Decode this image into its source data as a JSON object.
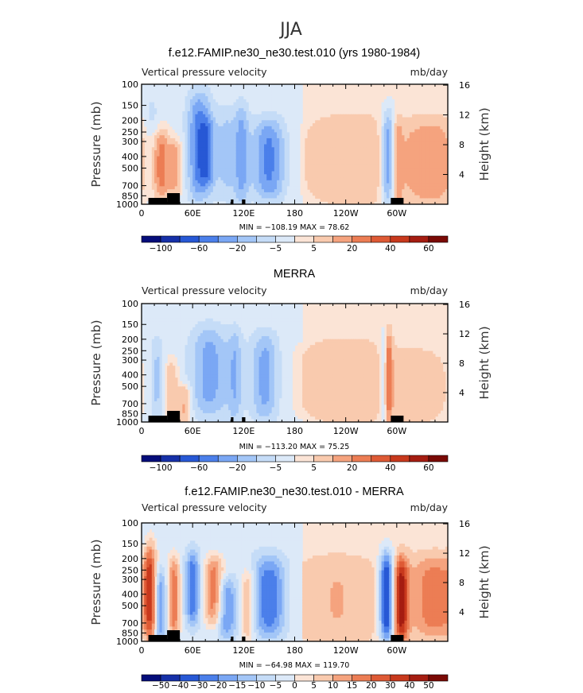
{
  "figure_title": "JJA",
  "chart_data": [
    {
      "type": "heatmap",
      "title": "f.e12.FAMIP.ne30_ne30.test.010 (yrs 1980-1984)",
      "variable_label": "Vertical pressure velocity",
      "units_label": "mb/day",
      "ylabel": "Pressure (mb)",
      "ylabel_right": "Height (km)",
      "xlabel": "",
      "x_ticks": [
        "0",
        "60E",
        "120E",
        "180",
        "120W",
        "60W"
      ],
      "y_ticks": [
        "100",
        "150",
        "200",
        "250",
        "300",
        "400",
        "500",
        "700",
        "850",
        "1000"
      ],
      "y_right_ticks": [
        "16",
        "12",
        "8",
        "4"
      ],
      "stats": "MIN = −108.19   MAX =  78.62",
      "colorbar_labels": [
        "−100",
        "−60",
        "−20",
        "−5",
        "5",
        "20",
        "40",
        "60"
      ],
      "colorbar_levels": [
        "−100",
        "−80",
        "−60",
        "−40",
        "−20",
        "−10",
        "−5",
        "−2",
        "2",
        "5",
        "10",
        "20",
        "30",
        "40",
        "60",
        "80"
      ],
      "xlim": [
        0,
        360
      ],
      "ylim": [
        1000,
        100
      ],
      "features": [
        {
          "lon": 12,
          "p_top": 140,
          "p_bot": 1000,
          "w": 6,
          "v": -18
        },
        {
          "lon": 22,
          "p_top": 250,
          "p_bot": 900,
          "w": 8,
          "v": 40
        },
        {
          "lon": 40,
          "p_top": 300,
          "p_bot": 800,
          "w": 6,
          "v": 30
        },
        {
          "lon": 68,
          "p_top": 120,
          "p_bot": 900,
          "w": 10,
          "v": -48
        },
        {
          "lon": 78,
          "p_top": 200,
          "p_bot": 700,
          "w": 6,
          "v": -25
        },
        {
          "lon": 100,
          "p_top": 160,
          "p_bot": 900,
          "w": 10,
          "v": -22
        },
        {
          "lon": 118,
          "p_top": 150,
          "p_bot": 1000,
          "w": 6,
          "v": -30
        },
        {
          "lon": 150,
          "p_top": 200,
          "p_bot": 900,
          "w": 14,
          "v": -45
        },
        {
          "lon": 245,
          "p_top": 180,
          "p_bot": 1000,
          "w": 40,
          "v": 18
        },
        {
          "lon": 290,
          "p_top": 170,
          "p_bot": 1000,
          "w": 6,
          "v": -55
        },
        {
          "lon": 300,
          "p_top": 200,
          "p_bot": 1000,
          "w": 4,
          "v": 25
        },
        {
          "lon": 340,
          "p_top": 200,
          "p_bot": 1000,
          "w": 25,
          "v": 28
        }
      ]
    },
    {
      "type": "heatmap",
      "title": "MERRA",
      "variable_label": "Vertical pressure velocity",
      "units_label": "mb/day",
      "ylabel": "Pressure (mb)",
      "ylabel_right": "Height (km)",
      "xlabel": "",
      "x_ticks": [
        "0",
        "60E",
        "120E",
        "180",
        "120W",
        "60W"
      ],
      "y_ticks": [
        "100",
        "150",
        "200",
        "250",
        "300",
        "400",
        "500",
        "700",
        "850",
        "1000"
      ],
      "y_right_ticks": [
        "16",
        "12",
        "8",
        "4"
      ],
      "stats": "MIN = −113.20   MAX =  75.25",
      "colorbar_labels": [
        "−100",
        "−60",
        "−20",
        "−5",
        "5",
        "20",
        "40",
        "60"
      ],
      "colorbar_levels": [
        "−100",
        "−80",
        "−60",
        "−40",
        "−20",
        "−10",
        "−5",
        "−2",
        "2",
        "5",
        "10",
        "20",
        "30",
        "40",
        "60",
        "80"
      ],
      "xlim": [
        0,
        360
      ],
      "ylim": [
        1000,
        100
      ],
      "features": [
        {
          "lon": 18,
          "p_top": 200,
          "p_bot": 1000,
          "w": 6,
          "v": -22
        },
        {
          "lon": 35,
          "p_top": 300,
          "p_bot": 900,
          "w": 6,
          "v": 25
        },
        {
          "lon": 50,
          "p_top": 500,
          "p_bot": 1000,
          "w": 6,
          "v": 30
        },
        {
          "lon": 80,
          "p_top": 160,
          "p_bot": 900,
          "w": 16,
          "v": -35
        },
        {
          "lon": 110,
          "p_top": 170,
          "p_bot": 1000,
          "w": 6,
          "v": -25
        },
        {
          "lon": 145,
          "p_top": 180,
          "p_bot": 950,
          "w": 12,
          "v": -35
        },
        {
          "lon": 240,
          "p_top": 200,
          "p_bot": 1000,
          "w": 40,
          "v": 18
        },
        {
          "lon": 285,
          "p_top": 180,
          "p_bot": 1000,
          "w": 4,
          "v": -28
        },
        {
          "lon": 290,
          "p_top": 170,
          "p_bot": 1000,
          "w": 3,
          "v": 40
        },
        {
          "lon": 325,
          "p_top": 250,
          "p_bot": 1000,
          "w": 25,
          "v": 15
        }
      ]
    },
    {
      "type": "heatmap",
      "title": "f.e12.FAMIP.ne30_ne30.test.010 - MERRA",
      "variable_label": "Vertical pressure velocity",
      "units_label": "mb/day",
      "ylabel": "Pressure (mb)",
      "ylabel_right": "Height (km)",
      "xlabel": "",
      "x_ticks": [
        "0",
        "60E",
        "120E",
        "180",
        "120W",
        "60W"
      ],
      "y_ticks": [
        "100",
        "150",
        "200",
        "250",
        "300",
        "400",
        "500",
        "700",
        "850",
        "1000"
      ],
      "y_right_ticks": [
        "16",
        "12",
        "8",
        "4"
      ],
      "stats": "MIN = −64.98   MAX = 119.70",
      "colorbar_labels": [
        "−50",
        "−40",
        "−30",
        "−20",
        "−15",
        "−10",
        "−5",
        "0",
        "5",
        "10",
        "15",
        "20",
        "30",
        "40",
        "50"
      ],
      "colorbar_levels": [
        "−50",
        "−40",
        "−30",
        "−20",
        "−15",
        "−10",
        "−5",
        "0",
        "5",
        "10",
        "15",
        "20",
        "30",
        "40",
        "50"
      ],
      "xlim": [
        0,
        360
      ],
      "ylim": [
        1000,
        100
      ],
      "features": [
        {
          "lon": 10,
          "p_top": 150,
          "p_bot": 1000,
          "w": 5,
          "v": 35
        },
        {
          "lon": 22,
          "p_top": 250,
          "p_bot": 1000,
          "w": 5,
          "v": -25
        },
        {
          "lon": 38,
          "p_top": 200,
          "p_bot": 900,
          "w": 5,
          "v": 30
        },
        {
          "lon": 60,
          "p_top": 180,
          "p_bot": 700,
          "w": 6,
          "v": -30
        },
        {
          "lon": 85,
          "p_top": 200,
          "p_bot": 700,
          "w": 8,
          "v": 30
        },
        {
          "lon": 100,
          "p_top": 300,
          "p_bot": 900,
          "w": 8,
          "v": -25
        },
        {
          "lon": 125,
          "p_top": 250,
          "p_bot": 1000,
          "w": 6,
          "v": 20
        },
        {
          "lon": 150,
          "p_top": 200,
          "p_bot": 900,
          "w": 14,
          "v": -30
        },
        {
          "lon": 230,
          "p_top": 200,
          "p_bot": 1000,
          "w": 35,
          "v": 10
        },
        {
          "lon": 288,
          "p_top": 180,
          "p_bot": 1000,
          "w": 6,
          "v": -50
        },
        {
          "lon": 305,
          "p_top": 200,
          "p_bot": 1000,
          "w": 6,
          "v": 40
        },
        {
          "lon": 345,
          "p_top": 200,
          "p_bot": 900,
          "w": 20,
          "v": 22
        }
      ]
    }
  ],
  "colors": {
    "diverging": [
      "#050d7a",
      "#1630a8",
      "#2758d5",
      "#4b7fea",
      "#7aa7f4",
      "#a3c6f7",
      "#c5dcf7",
      "#dce9f8",
      "#fbe4d6",
      "#f9caae",
      "#f5a37e",
      "#ec7d54",
      "#de5a35",
      "#c8391d",
      "#a51d11",
      "#7a0a05"
    ],
    "topography": "#000000"
  }
}
